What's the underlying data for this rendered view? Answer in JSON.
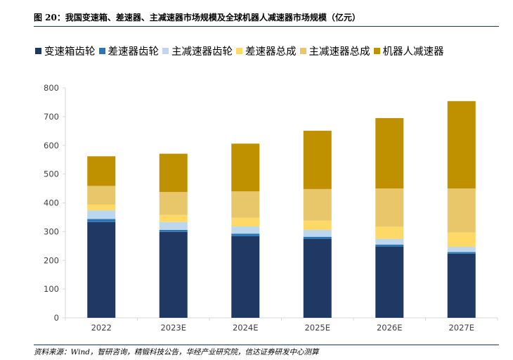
{
  "figure": {
    "title": "图 20：我国变速箱、差速器、主减速器市场规模及全球机器人减速器市场规模（亿元）",
    "source": "资料来源：Wind，智研咨询，精锻科技公告，华经产业研究院，信达证券研发中心测算"
  },
  "chart_data": {
    "type": "bar",
    "stacked": true,
    "categories": [
      "2022",
      "2023E",
      "2024E",
      "2025E",
      "2026E",
      "2027E"
    ],
    "series": [
      {
        "name": "变速箱齿轮",
        "color": "#1f3864",
        "values": [
          333,
          299,
          284,
          274,
          248,
          223
        ]
      },
      {
        "name": "差速器齿轮",
        "color": "#2e75b6",
        "values": [
          11,
          7,
          9,
          8,
          7,
          6
        ]
      },
      {
        "name": "主减速器齿轮",
        "color": "#bdd7ee",
        "values": [
          30,
          27,
          25,
          24,
          20,
          18
        ]
      },
      {
        "name": "差速器总成",
        "color": "#ffd966",
        "values": [
          20,
          25,
          30,
          32,
          42,
          50
        ]
      },
      {
        "name": "主减速器总成",
        "color": "#e8c66a",
        "values": [
          65,
          80,
          92,
          110,
          133,
          153
        ]
      },
      {
        "name": "机器人减速器",
        "color": "#bf9000",
        "values": [
          103,
          133,
          166,
          203,
          245,
          304
        ]
      }
    ],
    "ylim": [
      0,
      800
    ],
    "yticks": [
      "0",
      "100",
      "200",
      "300",
      "400",
      "500",
      "600",
      "700",
      "800"
    ],
    "grid": false,
    "legend_position": "top"
  }
}
